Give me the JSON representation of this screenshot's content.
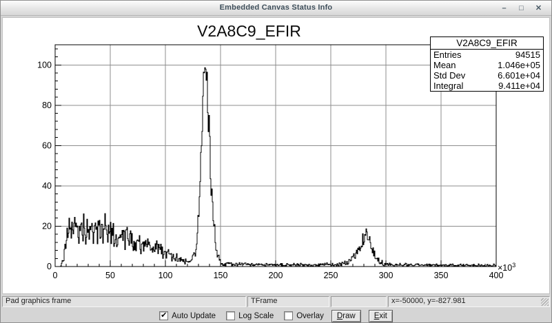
{
  "window": {
    "title": "Embedded Canvas Status Info",
    "buttons": {
      "minimize": "–",
      "maximize": "□",
      "close": "✕"
    }
  },
  "chart_data": {
    "type": "bar",
    "subtype": "1d-histogram-outline",
    "title": "V2A8C9_EFIR",
    "xlabel": "",
    "ylabel": "",
    "x_unit_label": "×10",
    "x_unit_exponent": "3",
    "xlim_thousands": [
      0,
      400
    ],
    "ylim": [
      0,
      110
    ],
    "x_ticks_thousands": [
      0,
      50,
      100,
      150,
      200,
      250,
      300,
      350,
      400
    ],
    "x_minor_step": 10,
    "y_ticks": [
      0,
      20,
      40,
      60,
      80,
      100
    ],
    "y_minor_step": 4,
    "grid": true,
    "grid_color": "#8d8d8d",
    "line_color": "#000000",
    "frame_color": "#000000",
    "description": "Noisy event-count histogram: broad plateau of ~18±8 counts from x≈8k to ~60k slowly declining to ~3 near 120k; dominant narrow peak centered at x≈135k reaching ~104 counts; small secondary peak at x≈283k reaching ~21 counts; near-zero baseline (~1) elsewhere up to 400k.",
    "envelope_points_x_mean_spread": [
      [
        0,
        0,
        0
      ],
      [
        5,
        0,
        0
      ],
      [
        6,
        1,
        1
      ],
      [
        7,
        3,
        2
      ],
      [
        9,
        9,
        4
      ],
      [
        11,
        15,
        5
      ],
      [
        13,
        19,
        6
      ],
      [
        16,
        20,
        7
      ],
      [
        20,
        19,
        7
      ],
      [
        24,
        18,
        7
      ],
      [
        28,
        19,
        7
      ],
      [
        33,
        18,
        7
      ],
      [
        38,
        18,
        7
      ],
      [
        43,
        19,
        7
      ],
      [
        48,
        18,
        7
      ],
      [
        53,
        16,
        6
      ],
      [
        58,
        15,
        6
      ],
      [
        63,
        15,
        6
      ],
      [
        68,
        14,
        6
      ],
      [
        73,
        13,
        5
      ],
      [
        78,
        12,
        5
      ],
      [
        83,
        11,
        5
      ],
      [
        88,
        10,
        4
      ],
      [
        93,
        9,
        4
      ],
      [
        98,
        7,
        3
      ],
      [
        103,
        6,
        3
      ],
      [
        108,
        5,
        3
      ],
      [
        113,
        3.5,
        2
      ],
      [
        118,
        2.5,
        1.5
      ],
      [
        122,
        2.5,
        1.5
      ],
      [
        125,
        4,
        2
      ],
      [
        127,
        7,
        3
      ],
      [
        129,
        14,
        5
      ],
      [
        131,
        32,
        9
      ],
      [
        133,
        65,
        13
      ],
      [
        134,
        82,
        12
      ],
      [
        135,
        95,
        9
      ],
      [
        136,
        99,
        7
      ],
      [
        137,
        94,
        9
      ],
      [
        138,
        85,
        10
      ],
      [
        139,
        72,
        11
      ],
      [
        141,
        48,
        10
      ],
      [
        143,
        26,
        8
      ],
      [
        145,
        13,
        5
      ],
      [
        147,
        6,
        3
      ],
      [
        149,
        3,
        2
      ],
      [
        152,
        1.5,
        1.2
      ],
      [
        158,
        1.2,
        1
      ],
      [
        165,
        1,
        1
      ],
      [
        175,
        0.9,
        0.9
      ],
      [
        190,
        0.9,
        0.9
      ],
      [
        205,
        0.8,
        0.8
      ],
      [
        220,
        0.8,
        0.8
      ],
      [
        235,
        0.8,
        0.8
      ],
      [
        248,
        0.9,
        0.9
      ],
      [
        258,
        1,
        1
      ],
      [
        264,
        1.5,
        1.2
      ],
      [
        268,
        2.5,
        1.5
      ],
      [
        272,
        5,
        2.5
      ],
      [
        276,
        10,
        3.5
      ],
      [
        279,
        14,
        4
      ],
      [
        281,
        17,
        4
      ],
      [
        283,
        18,
        4
      ],
      [
        285,
        15,
        4
      ],
      [
        287,
        11,
        3.5
      ],
      [
        289,
        7,
        3
      ],
      [
        292,
        3.5,
        2
      ],
      [
        295,
        2,
        1.5
      ],
      [
        300,
        1,
        1
      ],
      [
        315,
        0.9,
        0.9
      ],
      [
        330,
        0.8,
        0.8
      ],
      [
        350,
        0.7,
        0.8
      ],
      [
        370,
        0.6,
        0.7
      ],
      [
        385,
        0.6,
        0.7
      ],
      [
        400,
        0.5,
        0.6
      ]
    ],
    "stats": {
      "entries": 94515,
      "mean": "1.046e+05",
      "std_dev": "6.601e+04",
      "integral": "9.411e+04"
    }
  },
  "stats_box": {
    "title": "V2A8C9_EFIR",
    "rows": [
      [
        "Entries",
        "94515"
      ],
      [
        "Mean",
        "1.046e+05"
      ],
      [
        "Std Dev",
        "6.601e+04"
      ],
      [
        "Integral",
        "9.411e+04"
      ]
    ]
  },
  "status_bar": {
    "cells": [
      "Pad graphics frame",
      "TFrame",
      "",
      "x=-50000, y=-827.981"
    ]
  },
  "controls": {
    "checkboxes": [
      {
        "label": "Auto Update",
        "checked": true
      },
      {
        "label": "Log Scale",
        "checked": false
      },
      {
        "label": "Overlay",
        "checked": false
      }
    ],
    "buttons": [
      {
        "label": "Draw",
        "mnemonic": "D"
      },
      {
        "label": "Exit",
        "mnemonic": "E"
      }
    ]
  }
}
